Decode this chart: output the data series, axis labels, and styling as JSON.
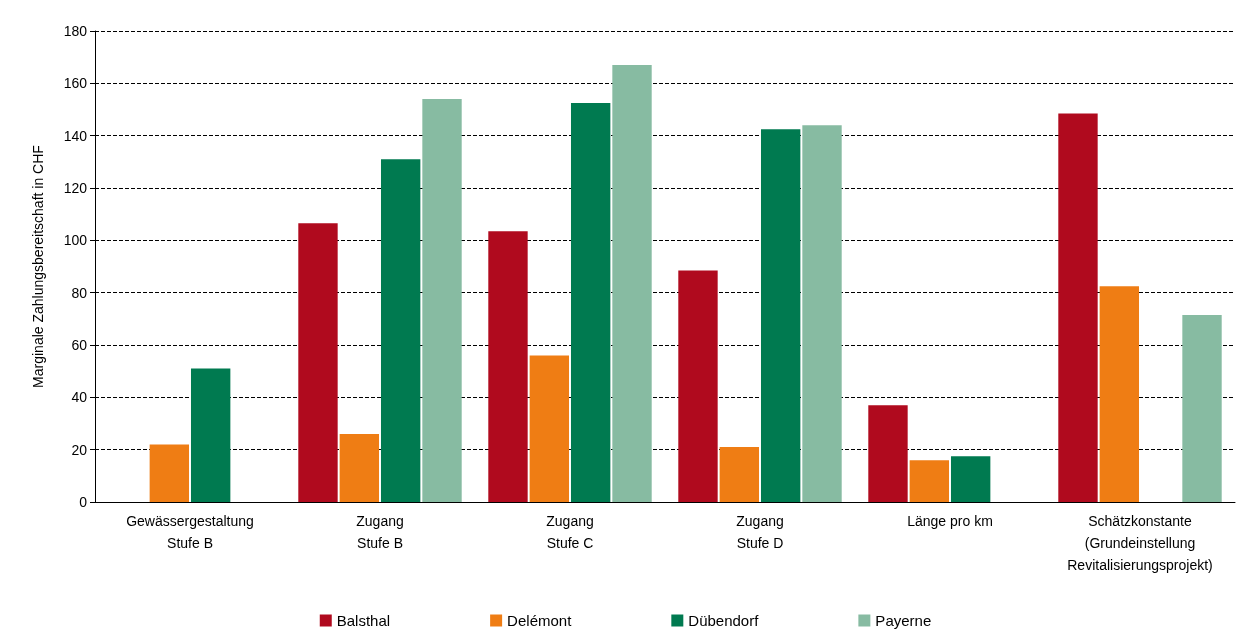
{
  "chart_data": {
    "type": "bar",
    "ylabel": "Marginale Zahlungsbereitschaft in CHF",
    "categories": [
      "Gewässergestaltung\nStufe B",
      "Zugang\nStufe B",
      "Zugang\nStufe C",
      "Zugang\nStufe D",
      "Länge pro km",
      "Schätzkonstante\n(Grundeinstellung\nRevitalisierungsprojekt)"
    ],
    "series": [
      {
        "name": "Balsthal",
        "color": "#b00a1e",
        "values": [
          null,
          106.5,
          103.5,
          88.5,
          37,
          148.5
        ]
      },
      {
        "name": "Delémont",
        "color": "#ef7d14",
        "values": [
          22,
          26,
          56,
          21,
          16,
          82.5
        ]
      },
      {
        "name": "Dübendorf",
        "color": "#007a50",
        "values": [
          51,
          131,
          152.5,
          142.5,
          17.5,
          null
        ]
      },
      {
        "name": "Payerne",
        "color": "#87bba2",
        "values": [
          null,
          154,
          167,
          144,
          null,
          71.5
        ]
      }
    ],
    "ylim": [
      0,
      180
    ],
    "yticks": [
      0,
      20,
      40,
      60,
      80,
      100,
      120,
      140,
      160,
      180
    ],
    "grid": "y",
    "legend": "bottom"
  }
}
